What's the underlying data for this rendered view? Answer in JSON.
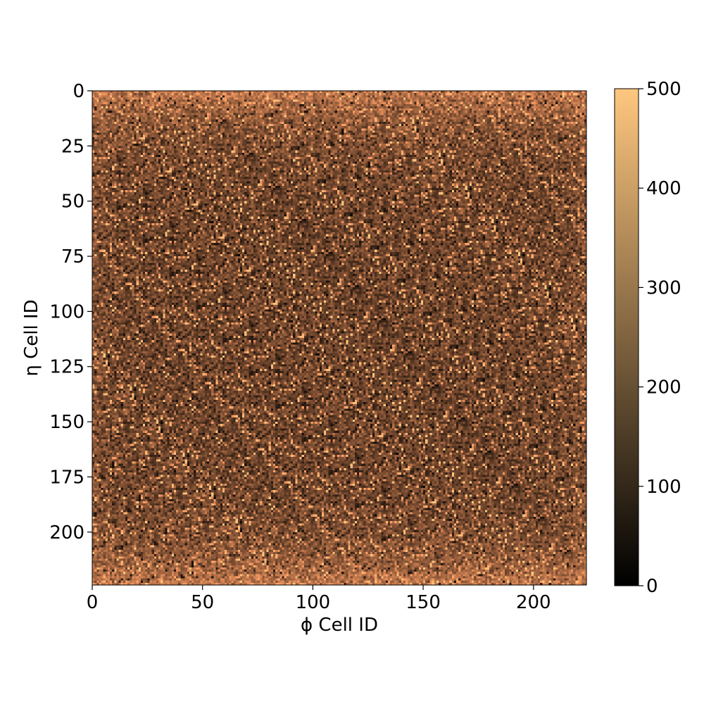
{
  "chart_data": {
    "type": "heatmap",
    "title": "",
    "xlabel": "ϕ Cell ID",
    "ylabel": "η Cell ID",
    "xlim": [
      0,
      224
    ],
    "ylim": [
      224,
      0
    ],
    "y_axis_inverted": true,
    "n_cols": 224,
    "n_rows": 224,
    "x_ticks": [
      0,
      50,
      100,
      150,
      200
    ],
    "y_ticks": [
      0,
      25,
      50,
      75,
      100,
      125,
      150,
      175,
      200
    ],
    "colorbar": {
      "min": 0,
      "max": 500,
      "ticks": [
        0,
        100,
        200,
        300,
        400,
        500
      ],
      "colormap": "copper",
      "colors": [
        "#000000",
        "#FFC77F"
      ]
    },
    "data_description_values": {
      "edge_band_rows": [
        [
          0,
          25
        ],
        [
          200,
          224
        ]
      ],
      "edge_band_mean": 300,
      "center_mean": 170,
      "hot_pixel_value": 500
    },
    "grid": false,
    "legend": "none"
  }
}
